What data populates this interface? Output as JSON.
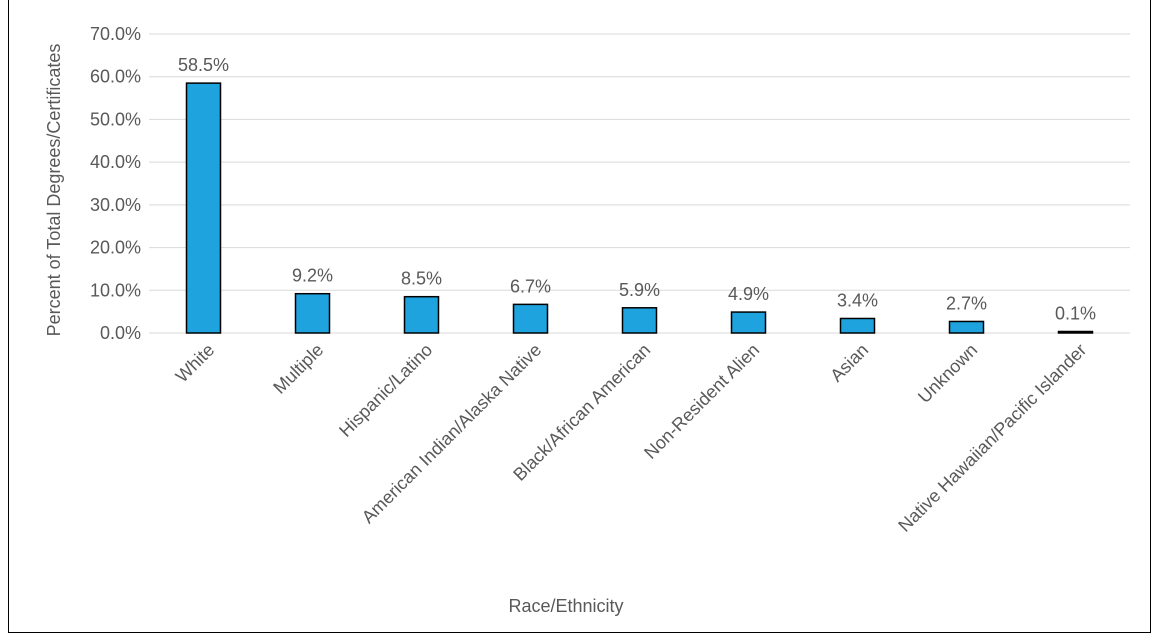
{
  "chart_data": {
    "type": "bar",
    "title": "",
    "xlabel": "Race/Ethnicity",
    "ylabel": "Percent of Total Degrees/Certificates",
    "categories": [
      "White",
      "Multiple",
      "Hispanic/Latino",
      "American Indian/Alaska Native",
      "Black/African American",
      "Non-Resident Alien",
      "Asian",
      "Unknown",
      "Native Hawaiian/Pacific Islander"
    ],
    "values": [
      58.5,
      9.2,
      8.5,
      6.7,
      5.9,
      4.9,
      3.4,
      2.7,
      0.1
    ],
    "data_labels": [
      "58.5%",
      "9.2%",
      "8.5%",
      "6.7%",
      "5.9%",
      "4.9%",
      "3.4%",
      "2.7%",
      "0.1%"
    ],
    "ylim": [
      0,
      70
    ],
    "yticks": [
      0,
      10,
      20,
      30,
      40,
      50,
      60,
      70
    ],
    "ytick_labels": [
      "0.0%",
      "10.0%",
      "20.0%",
      "30.0%",
      "40.0%",
      "50.0%",
      "60.0%",
      "70.0%"
    ],
    "grid": true,
    "legend": "none",
    "bar_color": "#1fa3de"
  }
}
